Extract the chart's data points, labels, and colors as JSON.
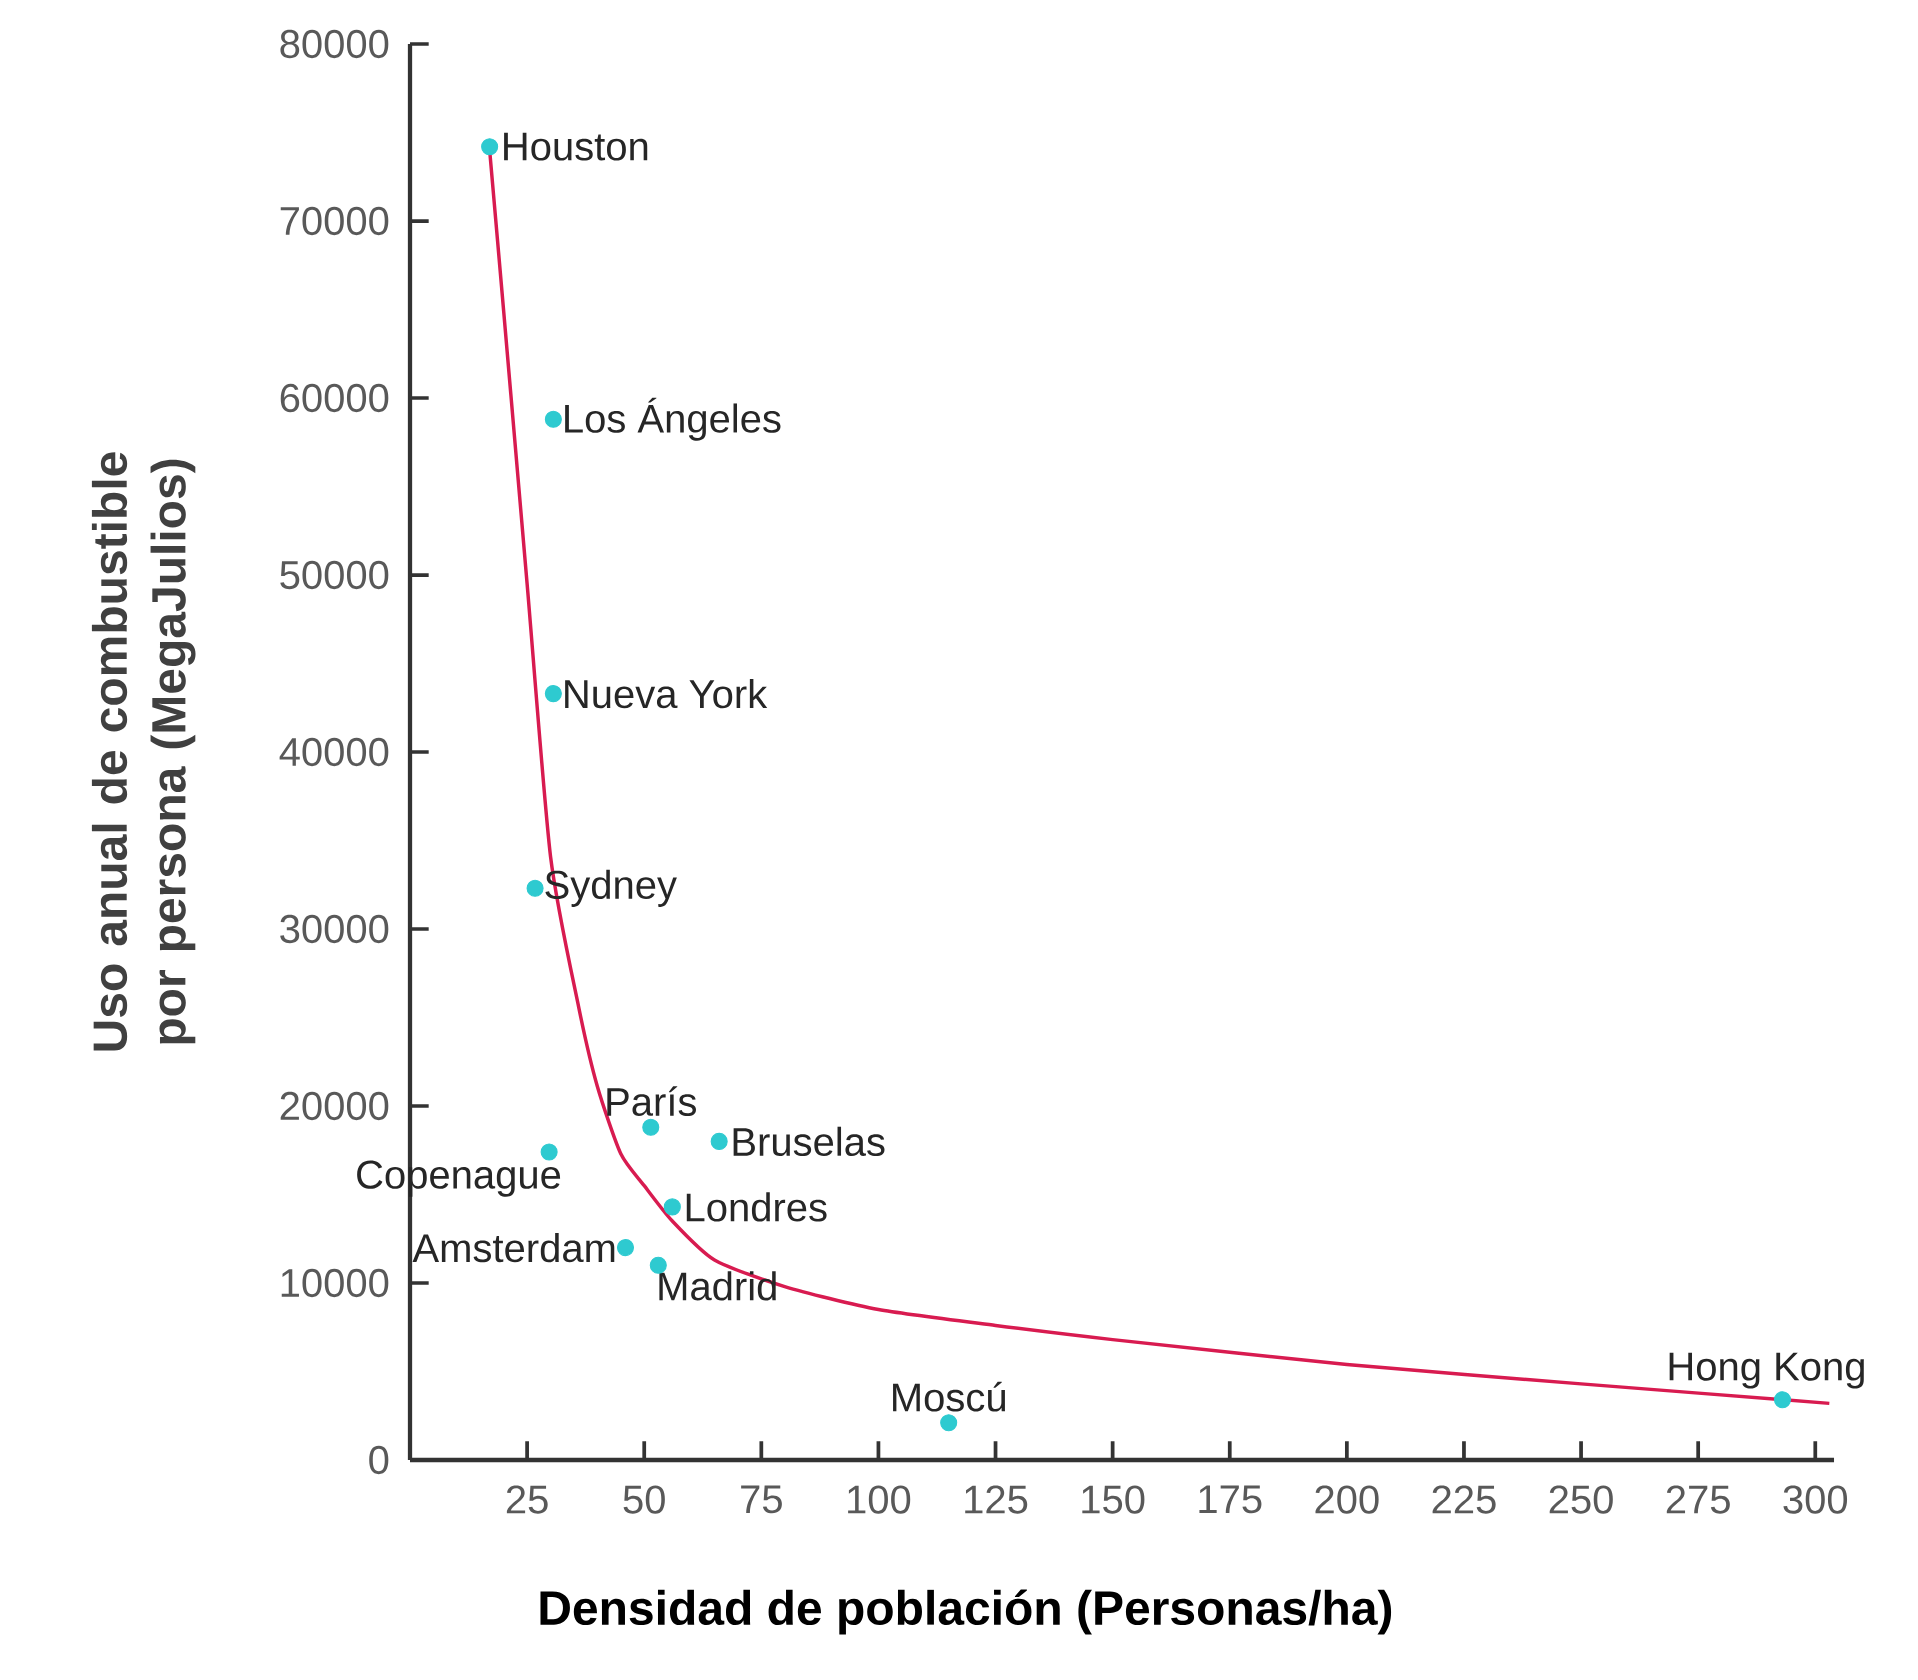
{
  "chart_data": {
    "type": "scatter",
    "xlabel": "Densidad de población (Personas/ha)",
    "ylabel": "Uso anual de combustible por persona (MegaJulios)",
    "xlim": [
      0,
      304
    ],
    "ylim": [
      0,
      80000
    ],
    "xticks": [
      25,
      50,
      75,
      100,
      125,
      150,
      175,
      200,
      225,
      250,
      275,
      300
    ],
    "yticks": [
      0,
      10000,
      20000,
      30000,
      40000,
      50000,
      60000,
      70000,
      80000
    ],
    "series": [
      {
        "color": "#2ecad0",
        "marker": "circle",
        "x": [
          17,
          30.6,
          30.6,
          26.7,
          29.7,
          51.4,
          66,
          56,
          46,
          53,
          115,
          293
        ],
        "values": [
          74200,
          58800,
          43300,
          32300,
          17400,
          18800,
          18000,
          14300,
          12000,
          11000,
          2100,
          3400
        ]
      },
      {
        "type": "line",
        "color": "#d81b50",
        "x": [
          17,
          20,
          25,
          30,
          36,
          40,
          45,
          50,
          56,
          65,
          80,
          100,
          125,
          150,
          200,
          250,
          303
        ],
        "values": [
          74000,
          64900,
          49500,
          34100,
          25600,
          21100,
          17300,
          15500,
          13500,
          11300,
          9800,
          8500,
          7600,
          6800,
          5400,
          4300,
          3200
        ]
      }
    ],
    "annotations": [
      {
        "text": "Houston",
        "x": 17,
        "y": 74200
      },
      {
        "text": "Los Ángeles",
        "x": 30.6,
        "y": 58800
      },
      {
        "text": "Nueva York",
        "x": 30.6,
        "y": 43300
      },
      {
        "text": "Sydney",
        "x": 26.7,
        "y": 32300
      },
      {
        "text": "Copenague",
        "x": 29.7,
        "y": 17400
      },
      {
        "text": "París",
        "x": 51.4,
        "y": 18800
      },
      {
        "text": "Bruselas",
        "x": 66,
        "y": 18000
      },
      {
        "text": "Londres",
        "x": 56,
        "y": 14300
      },
      {
        "text": "Amsterdam",
        "x": 46,
        "y": 12000
      },
      {
        "text": "Madrid",
        "x": 53,
        "y": 11000
      },
      {
        "text": "Moscú",
        "x": 115,
        "y": 2100
      },
      {
        "text": "Hong Kong",
        "x": 293,
        "y": 3400
      }
    ]
  }
}
